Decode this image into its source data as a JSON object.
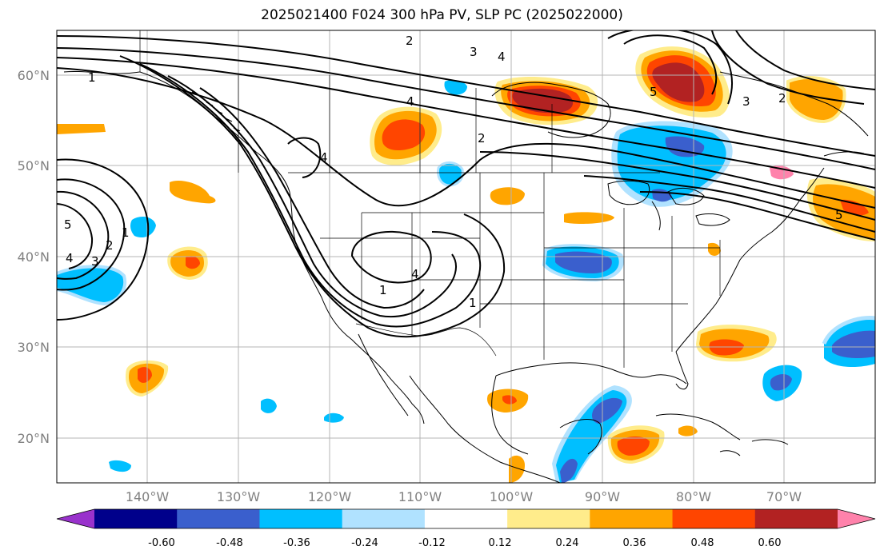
{
  "title": "2025021400 F024 300 hPa PV, SLP PC (2025022000)",
  "lat_labels": [
    "60°N",
    "50°N",
    "40°N",
    "30°N",
    "20°N"
  ],
  "lon_labels": [
    "140°W",
    "130°W",
    "120°W",
    "110°W",
    "100°W",
    "90°W",
    "80°W",
    "70°W"
  ],
  "colorbar": {
    "ticks": [
      "-0.60",
      "-0.48",
      "-0.36",
      "-0.24",
      "-0.12",
      "0.12",
      "0.24",
      "0.36",
      "0.48",
      "0.60"
    ],
    "colors": [
      "#9932cc",
      "#00008b",
      "#3a5fcd",
      "#00bfff",
      "#b0e2ff",
      "#ffffff",
      "#ffec8b",
      "#ffa500",
      "#ff4500",
      "#b22222",
      "#ff82ab"
    ]
  },
  "contour_labels": [
    "2",
    "3",
    "4",
    "5",
    "4",
    "2",
    "3",
    "2",
    "1",
    "4",
    "1",
    "5",
    "4",
    "3",
    "2",
    "1",
    "4",
    "1",
    "5"
  ]
}
